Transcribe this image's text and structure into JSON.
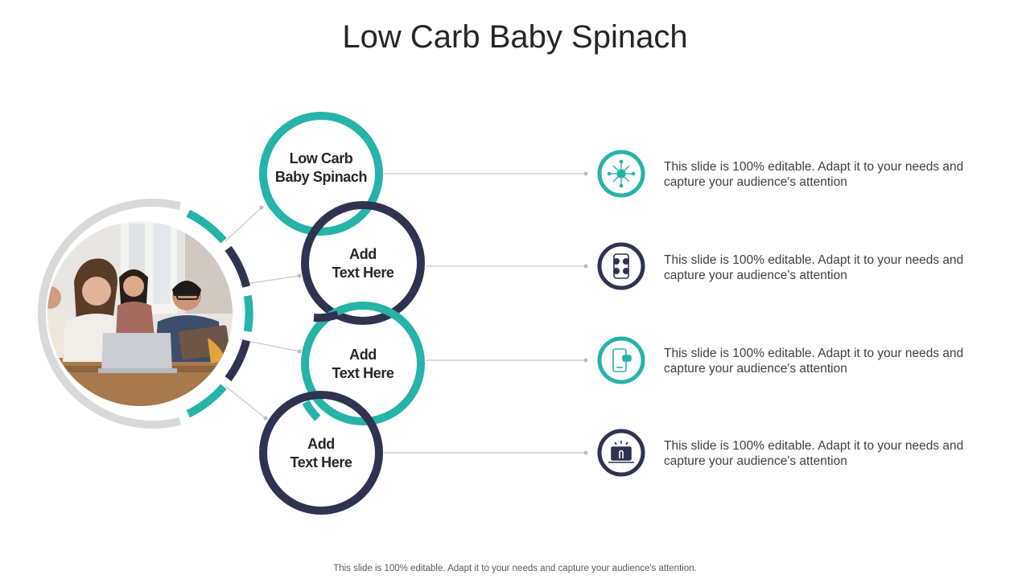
{
  "slide": {
    "title": "Low Carb Baby Spinach",
    "footer": "This slide is 100% editable. Adapt it to your needs and capture your audience's attention."
  },
  "colors": {
    "teal": "#26b3a8",
    "navy": "#2f3350",
    "gray_ring": "#d9d9d9",
    "connector": "#c8c8c8"
  },
  "items": [
    {
      "label_line1": "Low Carb",
      "label_line2": "Baby Spinach",
      "ring_color": "teal",
      "icon": "network-globe-icon",
      "description": "This slide is 100% editable. Adapt it to your needs and capture your audience's attention"
    },
    {
      "label_line1": "Add",
      "label_line2": "Text Here",
      "ring_color": "navy",
      "icon": "social-media-phone-icon",
      "description": "This slide is 100% editable. Adapt it to your needs and capture your audience's attention"
    },
    {
      "label_line1": "Add",
      "label_line2": "Text Here",
      "ring_color": "teal",
      "icon": "mobile-chat-icon",
      "description": "This slide is 100% editable. Adapt it to your needs and capture your audience's attention"
    },
    {
      "label_line1": "Add",
      "label_line2": "Text Here",
      "ring_color": "navy",
      "icon": "laptop-touch-icon",
      "description": "This slide is 100% editable. Adapt it to your needs and capture your audience's attention"
    }
  ],
  "photo": {
    "icon": "team-meeting-photo"
  }
}
